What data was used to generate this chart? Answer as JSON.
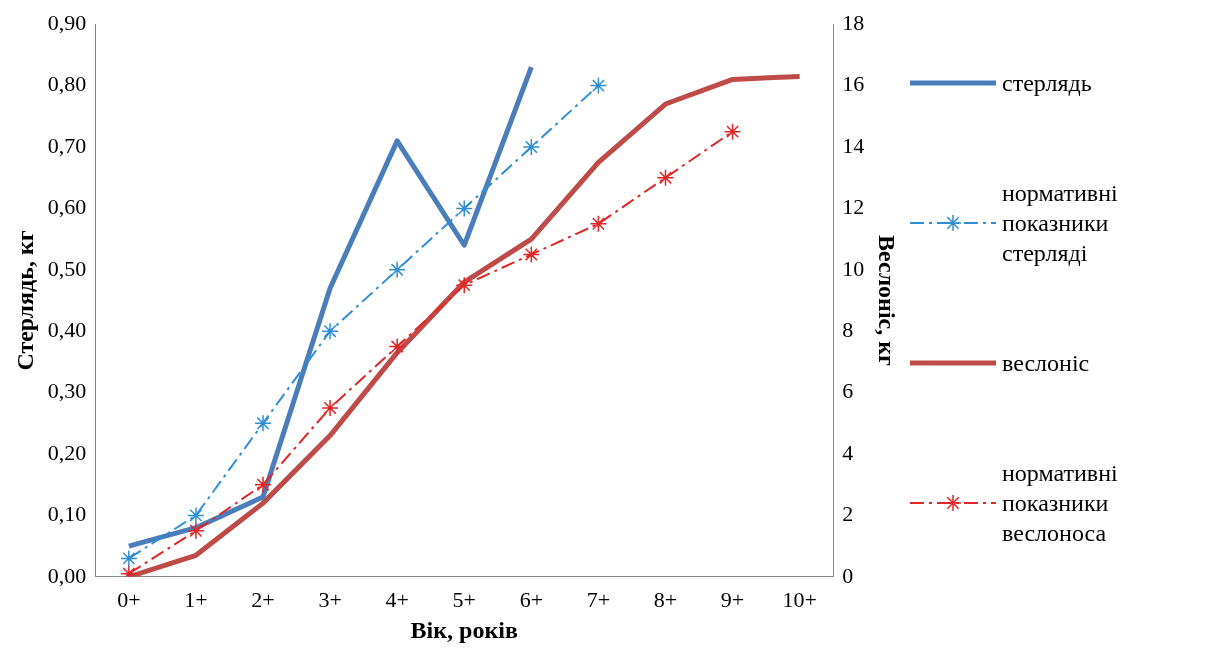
{
  "chart_data": {
    "type": "line",
    "xlabel": "Вік, років",
    "ylabel": "Стерлядь, кг",
    "y2label": "Веслоніс, кг",
    "categories": [
      "0+",
      "1+",
      "2+",
      "3+",
      "4+",
      "5+",
      "6+",
      "7+",
      "8+",
      "9+",
      "10+"
    ],
    "ylim": [
      0,
      0.9
    ],
    "yticks": [
      {
        "value": 0,
        "label": "0,00"
      },
      {
        "value": 0.1,
        "label": "0,10"
      },
      {
        "value": 0.2,
        "label": "0,20"
      },
      {
        "value": 0.3,
        "label": "0,30"
      },
      {
        "value": 0.4,
        "label": "0,40"
      },
      {
        "value": 0.5,
        "label": "0,50"
      },
      {
        "value": 0.6,
        "label": "0,60"
      },
      {
        "value": 0.7,
        "label": "0,70"
      },
      {
        "value": 0.8,
        "label": "0,80"
      },
      {
        "value": 0.9,
        "label": "0,90"
      }
    ],
    "y2lim": [
      0,
      18
    ],
    "y2ticks": [
      0,
      2,
      4,
      6,
      8,
      10,
      12,
      14,
      16,
      18
    ],
    "legend": "right",
    "series": [
      {
        "name": "стерлядь",
        "color": "#4a7ebb",
        "values": [
          0.05,
          0.08,
          0.13,
          0.47,
          0.71,
          0.54,
          0.83,
          null,
          null,
          null,
          null
        ],
        "marker": "none",
        "line_style": "solid"
      },
      {
        "name": "нормативні показники стерляді",
        "color": "#2e8fd8",
        "values": [
          0.03,
          0.1,
          0.25,
          0.4,
          0.5,
          0.6,
          0.7,
          0.8,
          null,
          null,
          null
        ],
        "marker": "cross",
        "line_style": "dashed"
      },
      {
        "name": "веслоніс",
        "color": "#be4b48",
        "axis": "y2",
        "values": [
          0,
          0.7,
          2.4,
          4.6,
          7.3,
          9.6,
          11.0,
          13.5,
          15.4,
          16.2,
          16.3
        ],
        "marker": "none",
        "line_style": "solid"
      },
      {
        "name": "нормативні показники веслоноса",
        "color": "#e02626",
        "axis": "y2",
        "values": [
          0.1,
          1.5,
          3.0,
          5.5,
          7.5,
          9.5,
          10.5,
          11.5,
          13.0,
          14.5,
          null
        ],
        "marker": "cross",
        "line_style": "dashed"
      }
    ]
  }
}
